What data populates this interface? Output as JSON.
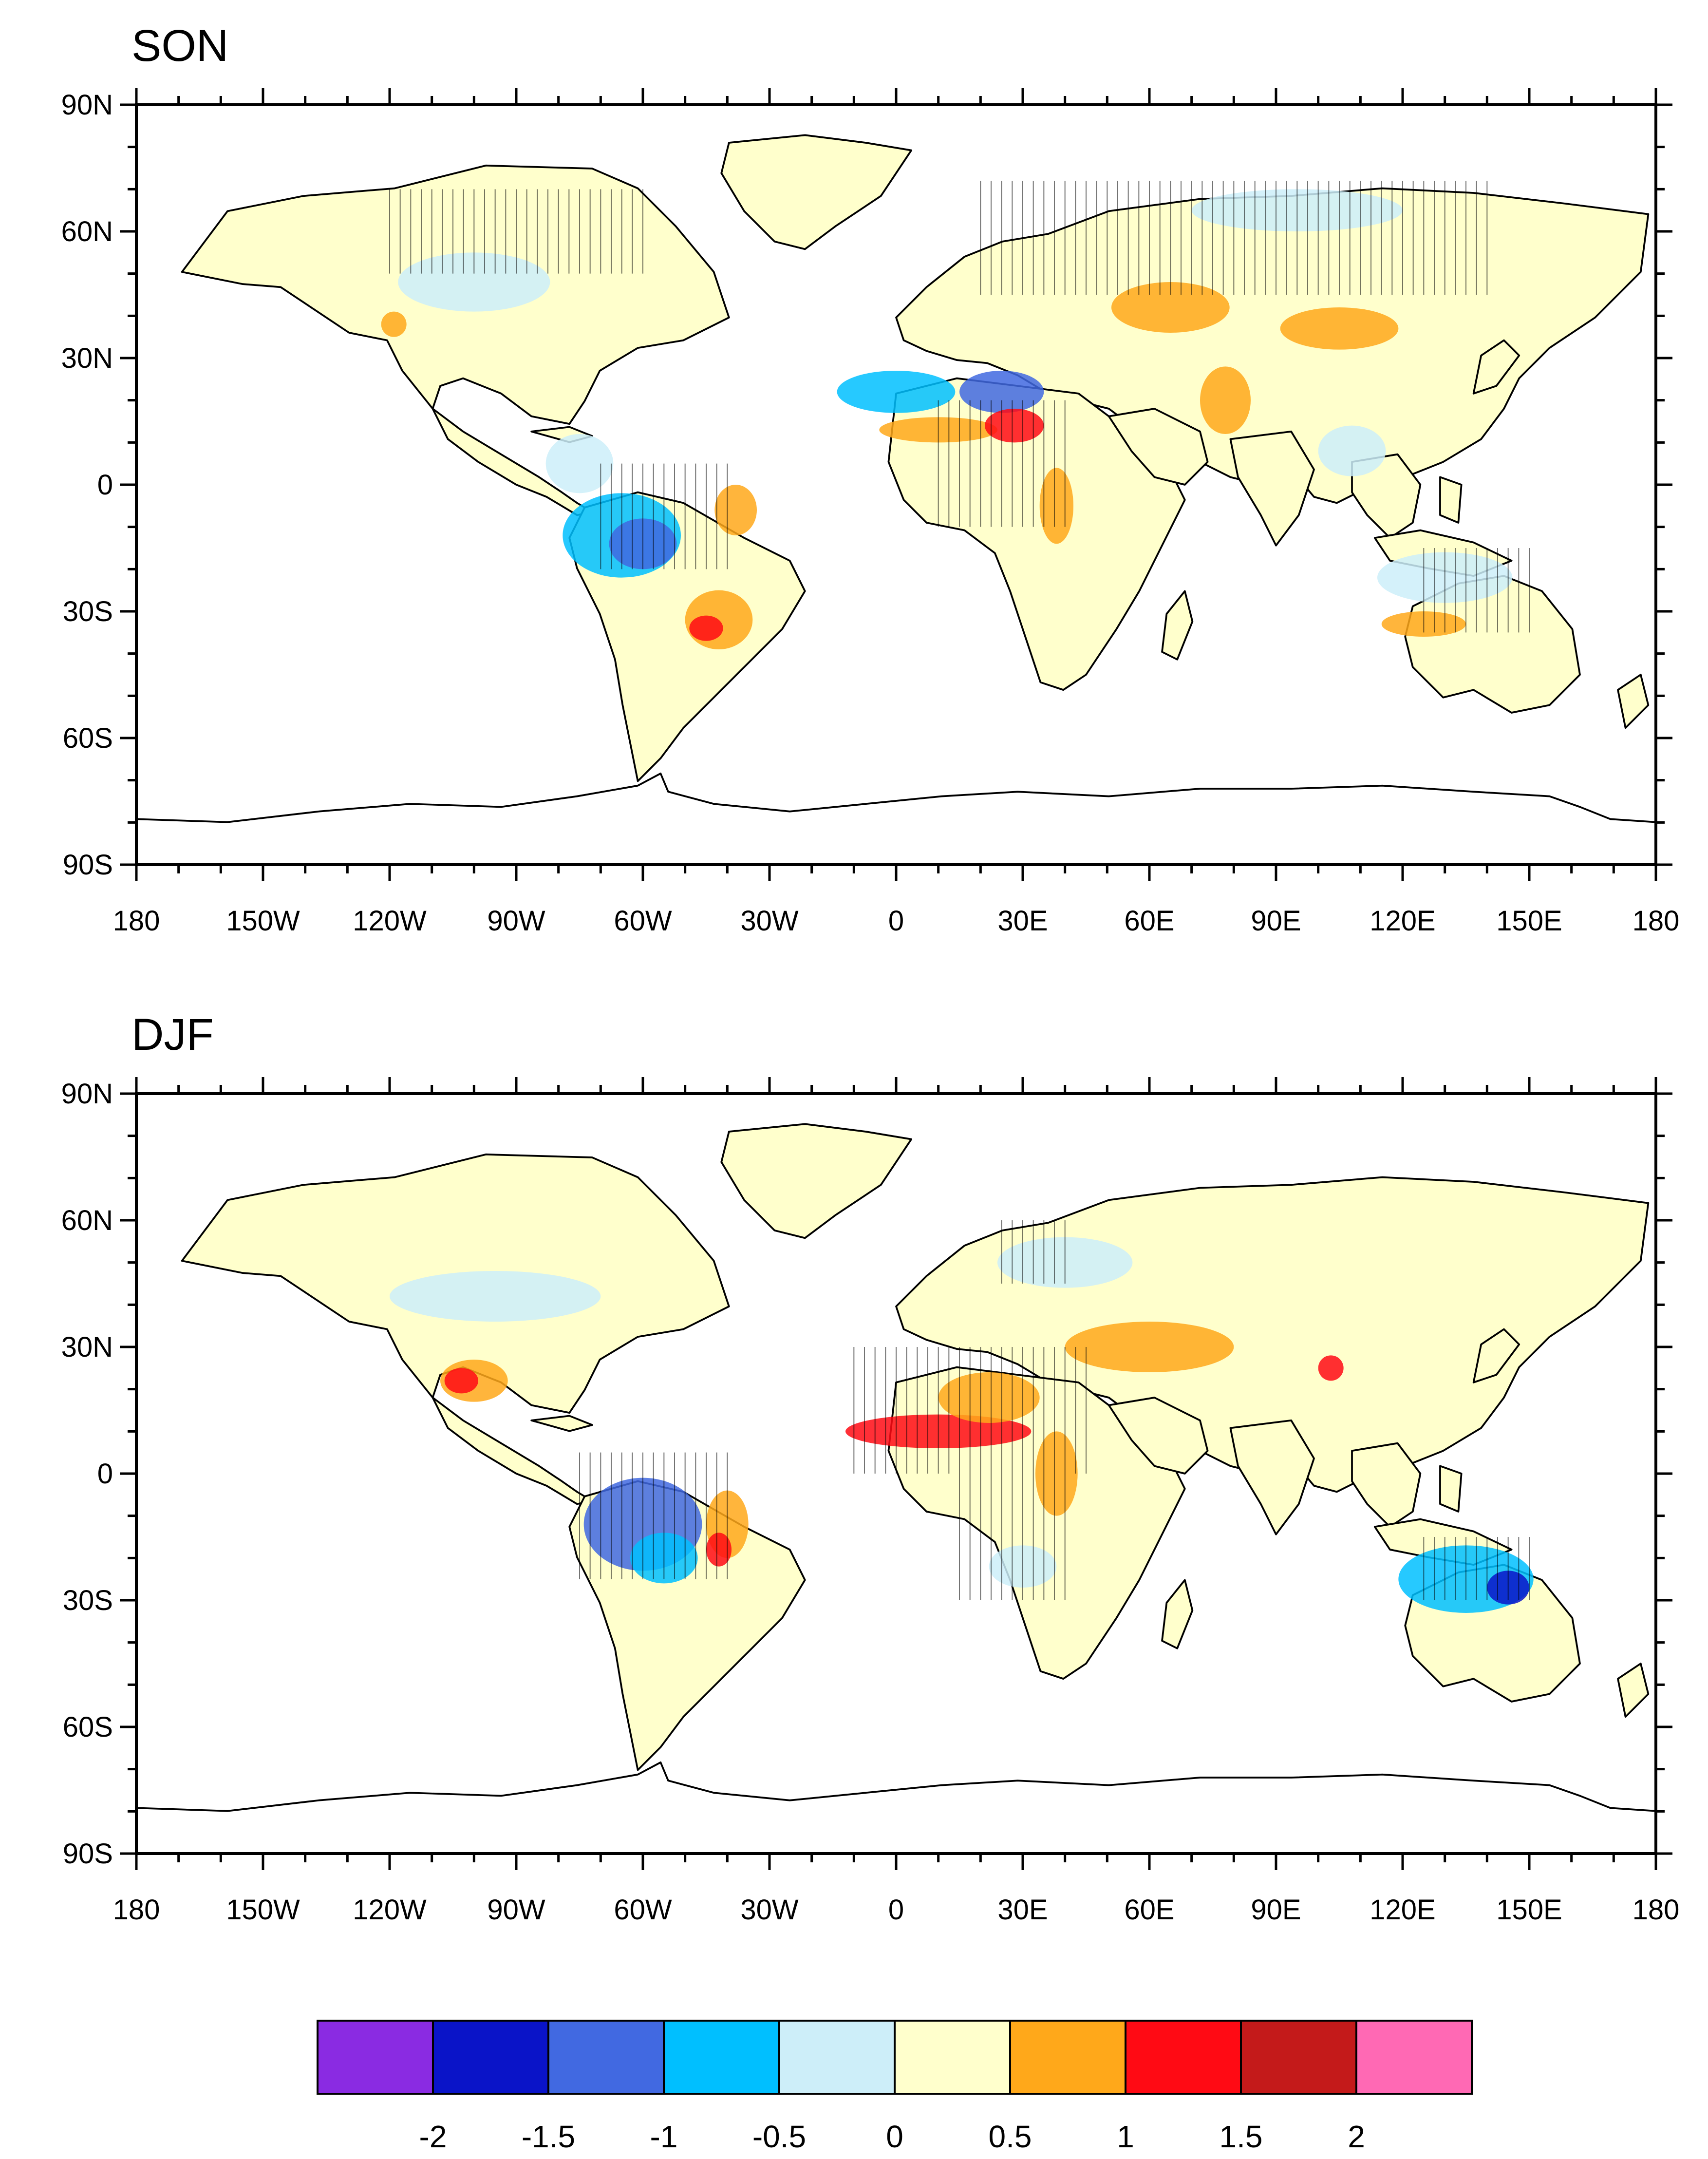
{
  "panels": [
    {
      "title": "SON",
      "lat_labels": [
        "90N",
        "60N",
        "30N",
        "0",
        "30S",
        "60S",
        "90S"
      ],
      "lon_labels": [
        "180",
        "150W",
        "120W",
        "90W",
        "60W",
        "30W",
        "0",
        "30E",
        "60E",
        "90E",
        "120E",
        "150E",
        "180"
      ]
    },
    {
      "title": "DJF",
      "lat_labels": [
        "90N",
        "60N",
        "30N",
        "0",
        "30S",
        "60S",
        "90S"
      ],
      "lon_labels": [
        "180",
        "150W",
        "120W",
        "90W",
        "60W",
        "30W",
        "0",
        "30E",
        "60E",
        "90E",
        "120E",
        "150E",
        "180"
      ]
    }
  ],
  "colorbar": {
    "labels": [
      "-2",
      "-1.5",
      "-1",
      "-0.5",
      "0",
      "0.5",
      "1",
      "1.5",
      "2"
    ],
    "colors": [
      "#8a2be2",
      "#0a14c8",
      "#4169e1",
      "#00bfff",
      "#cdeef9",
      "#ffffcc",
      "#ffa81a",
      "#ff0a14",
      "#c41a1a",
      "#ff69b4"
    ]
  },
  "map_colors": {
    "land_base": "#ffffcc",
    "ocean": "#ffffff",
    "coast": "#000000"
  }
}
